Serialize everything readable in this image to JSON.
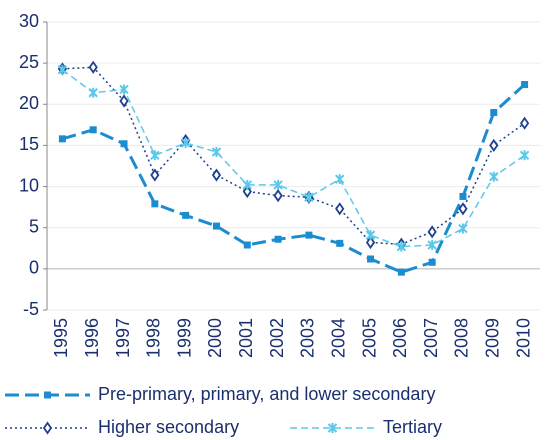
{
  "chart_data": {
    "type": "line",
    "categories": [
      "1995",
      "1996",
      "1997",
      "1998",
      "1999",
      "2000",
      "2001",
      "2002",
      "2003",
      "2004",
      "2005",
      "2006",
      "2007",
      "2008",
      "2009",
      "2010"
    ],
    "series": [
      {
        "name": "Pre-primary, primary, and lower secondary",
        "color": "#1a8ccf",
        "marker": "square",
        "dash": "14 6",
        "width": 3,
        "values": [
          15.8,
          16.9,
          15.2,
          7.9,
          6.5,
          5.2,
          2.9,
          3.6,
          4.1,
          3.1,
          1.2,
          -0.4,
          0.8,
          8.8,
          19.0,
          22.4
        ]
      },
      {
        "name": "Higher secondary",
        "color": "#1f3f8f",
        "marker": "diamond",
        "dash": "2 3",
        "width": 1.5,
        "values": [
          24.3,
          24.5,
          20.4,
          11.4,
          15.6,
          11.4,
          9.4,
          8.9,
          8.7,
          7.3,
          3.2,
          3.0,
          4.5,
          7.3,
          15.0,
          17.7
        ]
      },
      {
        "name": "Tertiary",
        "color": "#5bc8ea",
        "marker": "cross",
        "dash": "7 4",
        "width": 1.5,
        "values": [
          24.2,
          21.4,
          21.8,
          13.8,
          15.3,
          14.2,
          10.2,
          10.2,
          8.7,
          10.9,
          4.1,
          2.7,
          2.9,
          4.9,
          11.2,
          13.8
        ]
      }
    ],
    "ylim": [
      -5,
      30
    ],
    "yticks": [
      -5,
      0,
      5,
      10,
      15,
      20,
      25,
      30
    ],
    "grid": true
  }
}
